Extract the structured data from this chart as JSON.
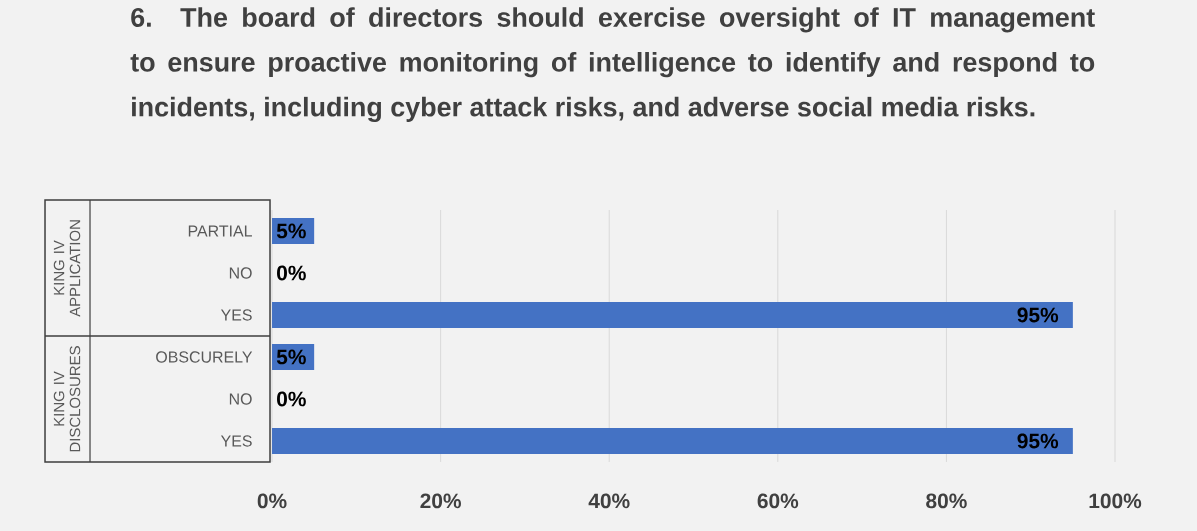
{
  "chart_data": {
    "type": "bar",
    "orientation": "horizontal",
    "title": "6. The board of directors should exercise oversight of IT management to ensure proactive monitoring of intelligence to identify and respond to incidents, including cyber attack risks, and adverse social  media risks.",
    "categories": [
      "PARTIAL",
      "NO",
      "YES",
      "OBSCURELY",
      "NO",
      "YES"
    ],
    "values": [
      5,
      0,
      95,
      5,
      0,
      95
    ],
    "value_labels": [
      "5%",
      "0%",
      "95%",
      "5%",
      "0%",
      "95%"
    ],
    "color": "#4472c4",
    "annotations": [
      "KING IV APPLICATION",
      "KING IV DISCLOSURES"
    ],
    "xlim": [
      0,
      100
    ],
    "xticks": [
      {
        "value": 0,
        "label": "0%"
      },
      {
        "value": 20,
        "label": "20%"
      },
      {
        "value": 40,
        "label": "40%"
      },
      {
        "value": 60,
        "label": "60%"
      },
      {
        "value": 80,
        "label": "80%"
      },
      {
        "value": 100,
        "label": "100%"
      }
    ],
    "grid": "x"
  }
}
